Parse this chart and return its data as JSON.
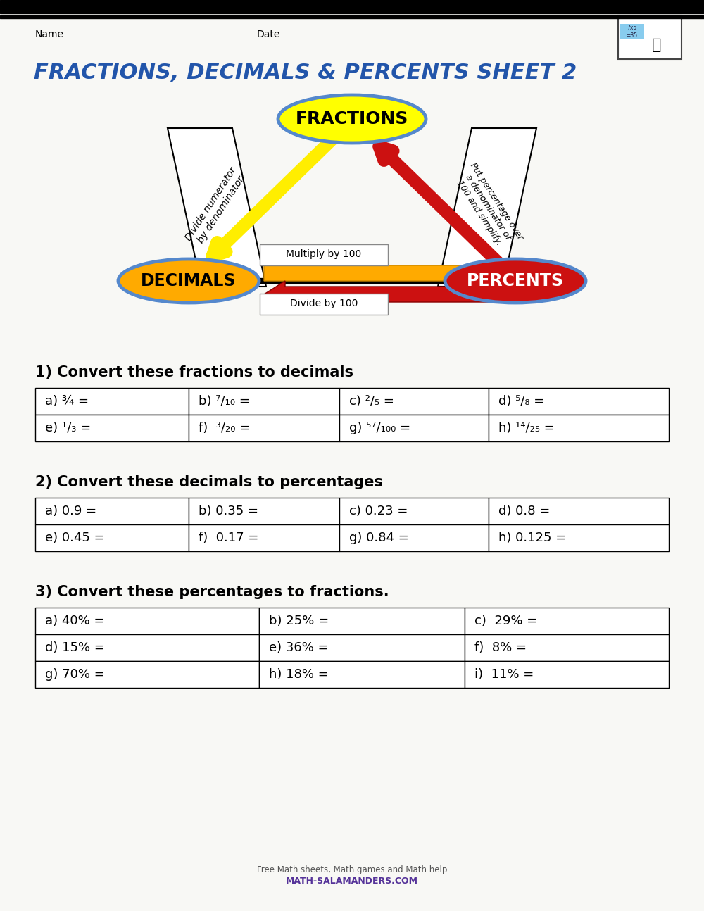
{
  "title": "FRACTIONS, DECIMALS & PERCENTS SHEET 2",
  "title_color": "#2255aa",
  "bg_color": "#f8f8f5",
  "header_name": "Name",
  "header_date": "Date",
  "section1_title": "1) Convert these fractions to decimals",
  "section1_rows": [
    [
      "a) ¾ =",
      "b) ⁷/₁₀ =",
      "c) ²/₅ =",
      "d) ⁵/₈ ="
    ],
    [
      "e) ¹/₃ =",
      "f)  ³/₂₀ =",
      "g) ⁵⁷/₁₀₀ =",
      "h) ¹⁴/₂₅ ="
    ]
  ],
  "section2_title": "2) Convert these decimals to percentages",
  "section2_rows": [
    [
      "a) 0.9 =",
      "b) 0.35 =",
      "c) 0.23 =",
      "d) 0.8 ="
    ],
    [
      "e) 0.45 =",
      "f)  0.17 =",
      "g) 0.84 =",
      "h) 0.125 ="
    ]
  ],
  "section3_title": "3) Convert these percentages to fractions.",
  "section3_rows": [
    [
      "a) 40% =",
      "b) 25% =",
      "c)  29% ="
    ],
    [
      "d) 15% =",
      "e) 36% =",
      "f)  8% ="
    ],
    [
      "g) 70% =",
      "h) 18% =",
      "i)  11% ="
    ]
  ],
  "fractions_label": "FRACTIONS",
  "decimals_label": "DECIMALS",
  "percents_label": "PERCENTS",
  "fractions_fill": "#ffff00",
  "fractions_edge": "#5588cc",
  "decimals_fill": "#ffaa00",
  "decimals_edge": "#5588cc",
  "percents_fill": "#cc1111",
  "percents_edge": "#5588cc",
  "arrow_yellow": "#ffee00",
  "arrow_orange": "#ffaa00",
  "arrow_red": "#cc1111",
  "multiply_label": "Multiply by 100",
  "divide_label": "Divide by 100",
  "left_banner_text": "Divide numerator\nby denominator",
  "right_banner_text": "Put percentage over\na denominator of\n100 and simplify.",
  "footer_line1": "Free Math sheets, Math games and Math help",
  "footer_line2": "MATH-SALAMANDERS.COM"
}
